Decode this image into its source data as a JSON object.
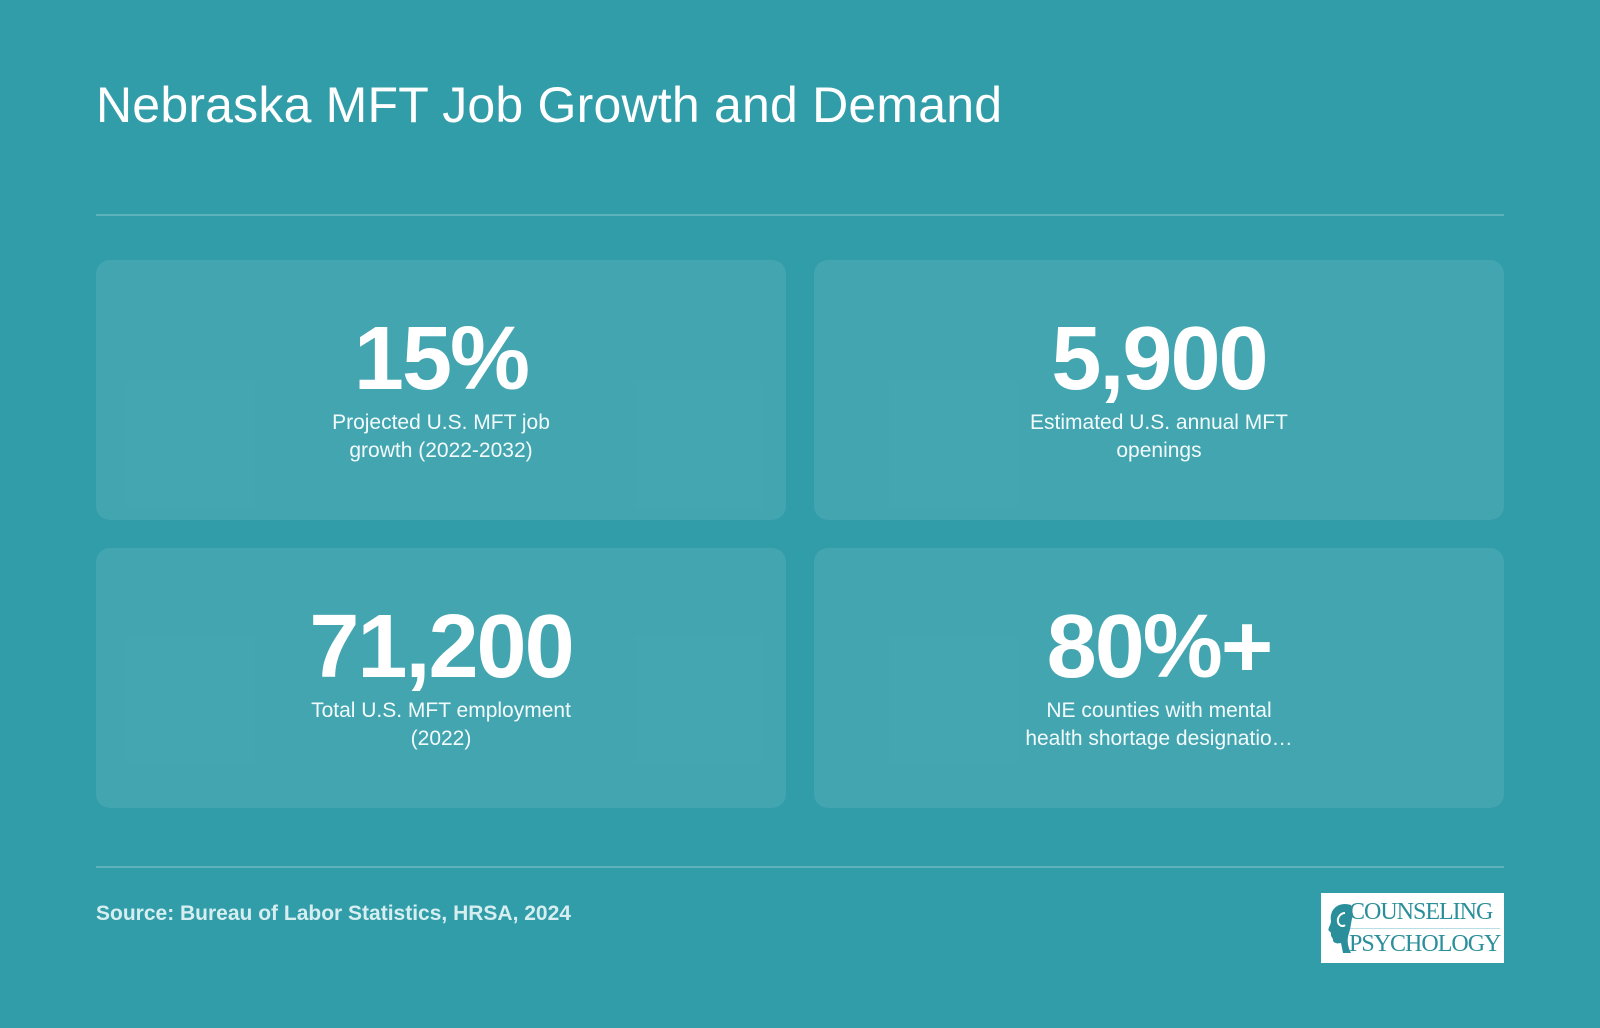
{
  "title": "Nebraska MFT Job Growth and Demand",
  "stats": [
    {
      "value": "15%",
      "label": "Projected U.S. MFT job\ngrowth (2022-2032)"
    },
    {
      "value": "5,900",
      "label": "Estimated U.S. annual MFT\nopenings"
    },
    {
      "value": "71,200",
      "label": "Total U.S. MFT employment\n(2022)"
    },
    {
      "value": "80%+",
      "label": "NE counties with mental\nhealth shortage designatio…"
    }
  ],
  "source": "Source: Bureau of Labor Statistics, HRSA, 2024",
  "logo": {
    "line1": "COUNSELING",
    "line2": "PSYCHOLOGY"
  },
  "colors": {
    "background": "#319da9",
    "card": "#43a7b3",
    "logo_text": "#2b8f9b"
  }
}
